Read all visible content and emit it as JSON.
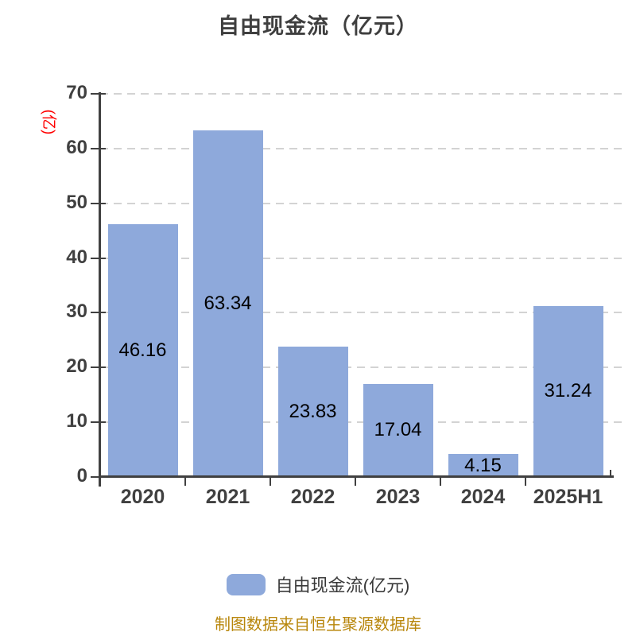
{
  "title": "自由现金流（亿元）",
  "y_axis_unit_label": "(亿)",
  "footer_note": "制图数据来自恒生聚源数据库",
  "legend": {
    "label": "自由现金流(亿元)",
    "swatch_color": "#8ea9db"
  },
  "colors": {
    "bar": "#8ea9db",
    "axis": "#404040",
    "tick_label": "#404040",
    "value_label": "#000000",
    "gridline": "#d3d3d3",
    "title": "#3f3f3f",
    "y_unit_label": "#ff0000",
    "footer": "#b8860b",
    "background": "#ffffff"
  },
  "chart_data": {
    "type": "bar",
    "title": "自由现金流（亿元）",
    "categories": [
      "2020",
      "2021",
      "2022",
      "2023",
      "2024",
      "2025H1"
    ],
    "values": [
      46.16,
      63.34,
      23.83,
      17.04,
      4.15,
      31.24
    ],
    "value_labels": [
      "46.16",
      "63.34",
      "23.83",
      "17.04",
      "4.15",
      "31.24"
    ],
    "ylabel": "(亿)",
    "xlabel": "",
    "ylim": [
      0,
      70
    ],
    "ytick_step": 10,
    "ytick_labels": [
      "0",
      "10",
      "20",
      "30",
      "40",
      "50",
      "60",
      "70"
    ],
    "grid": "horizontal-dashed",
    "legend_position": "bottom",
    "legend_entries": [
      "自由现金流(亿元)"
    ]
  }
}
